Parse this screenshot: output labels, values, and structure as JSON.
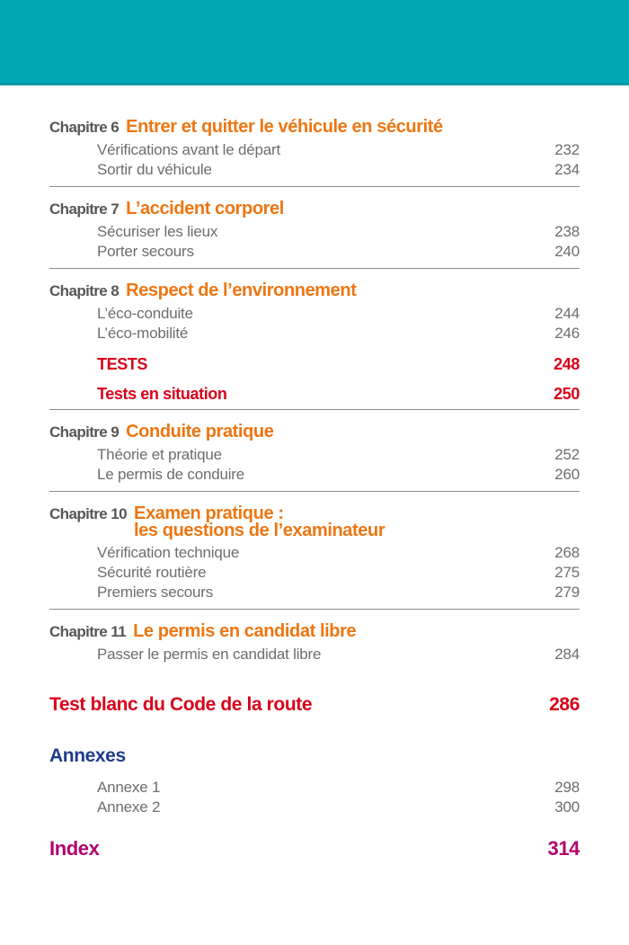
{
  "colors": {
    "band_teal": "#00a9b4",
    "chapter_orange": "#ed7612",
    "tests_red": "#d90019",
    "annexes_blue": "#1e3c8c",
    "index_magenta": "#b1006e",
    "label_gray": "#575756",
    "item_gray": "#6e6d6d"
  },
  "toc": {
    "sections": [
      {
        "label": "Chapitre 6",
        "title": "Entrer et quitter le véhicule en sécurité",
        "items": [
          {
            "label": "Vérifications avant le départ",
            "page": "232"
          },
          {
            "label": "Sortir du véhicule",
            "page": "234"
          }
        ]
      },
      {
        "label": "Chapitre 7",
        "title": "L’accident corporel",
        "items": [
          {
            "label": "Sécuriser les lieux",
            "page": "238"
          },
          {
            "label": "Porter secours",
            "page": "240"
          }
        ]
      },
      {
        "label": "Chapitre 8",
        "title": "Respect de l’environnement",
        "items": [
          {
            "label": "L’éco-conduite",
            "page": "244"
          },
          {
            "label": "L’éco-mobilité",
            "page": "246"
          }
        ],
        "tests": [
          {
            "label": "TESTS",
            "page": "248"
          },
          {
            "label": "Tests en situation",
            "page": "250"
          }
        ]
      },
      {
        "label": "Chapitre 9",
        "title": "Conduite pratique",
        "items": [
          {
            "label": "Théorie et pratique",
            "page": "252"
          },
          {
            "label": "Le permis de conduire",
            "page": "260"
          }
        ]
      },
      {
        "label": "Chapitre 10",
        "title": "Examen pratique :",
        "title_line2": "les questions de l’examinateur",
        "items": [
          {
            "label": "Vérification technique",
            "page": "268"
          },
          {
            "label": "Sécurité routière",
            "page": "275"
          },
          {
            "label": "Premiers secours",
            "page": "279"
          }
        ]
      },
      {
        "label": "Chapitre 11",
        "title": "Le permis en candidat libre",
        "items": [
          {
            "label": "Passer le permis en candidat libre",
            "page": "284"
          }
        ]
      }
    ],
    "test_blanc": {
      "label": "Test blanc du Code de la route",
      "page": "286"
    },
    "annexes": {
      "title": "Annexes",
      "items": [
        {
          "label": "Annexe 1",
          "page": "298"
        },
        {
          "label": "Annexe 2",
          "page": "300"
        }
      ]
    },
    "index": {
      "label": "Index",
      "page": "314"
    }
  }
}
